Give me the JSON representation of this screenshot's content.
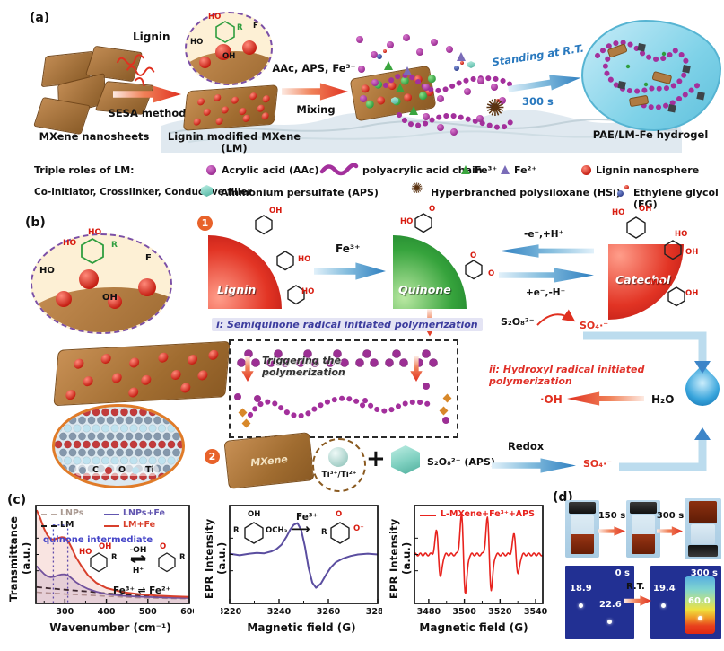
{
  "panel_a": {
    "label": "(a)",
    "mxene_caption": "MXene nanosheets",
    "lignin_label": "Lignin",
    "step1": "SESA method",
    "lm_caption": "Lignin modified MXene (LM)",
    "step2_top": "AAc, APS, Fe³⁺",
    "step2_bottom": "Mixing",
    "step3_top": "Standing at R.T.",
    "step3_bottom": "300 s",
    "hydrogel_caption": "PAE/LM-Fe hydrogel",
    "inset": {
      "ho": "HO",
      "ho_red": "HO",
      "r": "R",
      "f": "F",
      "oh": "OH"
    }
  },
  "legend": {
    "row1_title": "Triple roles of LM:",
    "row2_title": "Co-initiator, Crosslinker, Conductive filler",
    "items": [
      {
        "icon": "purple-circle",
        "label": "Acrylic acid (AAc)"
      },
      {
        "icon": "purple-chain",
        "label": "polyacrylic acid chain"
      },
      {
        "icon": "green-triangle",
        "label": "Fe³⁺"
      },
      {
        "icon": "violet-triangle",
        "label": "Fe²⁺"
      },
      {
        "icon": "red-circle",
        "label": "Lignin nanosphere"
      },
      {
        "icon": "teal-cube",
        "label": "Ammonium persulfate (APS)"
      },
      {
        "icon": "brown-burr",
        "label": "Hyperbranched polysiloxane (HSi)"
      },
      {
        "icon": "blue-red-dots",
        "label": "Ethylene glycol (EG)"
      }
    ]
  },
  "panel_b": {
    "label": "(b)",
    "marker1": "1",
    "marker2": "2",
    "lignin": "Lignin",
    "quinone": "Quinone",
    "catechol": "Catechol",
    "fe3": "Fe³⁺",
    "cycle_top": "-e⁻,+H⁺",
    "cycle_bottom": "+e⁻,-H⁺",
    "persulfate": "S₂O₈²⁻",
    "sulfate": "SO₄·⁻",
    "route_i": "i: Semiquinone radical initiated polymerization",
    "route_ii": "ii: Hydroxyl radical initiated polymerization",
    "triggering": "Triggering the polymerization",
    "oh_radical": "·OH",
    "water": "H₂O",
    "mxene": "MXene",
    "ti": "Ti³⁺/Ti²⁺",
    "plus": "+",
    "aps": "S₂O₈²⁻ (APS)",
    "redox": "Redox",
    "sulfate2": "SO₄·⁻",
    "atoms": [
      "C",
      "O",
      "Ti"
    ],
    "inset": {
      "ho": "HO",
      "ho_red1": "HO",
      "ho_red2": "HO",
      "r": "R",
      "f": "F",
      "oh": "OH"
    },
    "mol": {
      "oh": "OH",
      "ho": "HO",
      "r": "R",
      "o": "O"
    }
  },
  "panel_c": {
    "label": "(c)"
  },
  "panel_d": {
    "label": "(d)",
    "t150": "150 s",
    "t300": "300 s",
    "thermal_left_time": "0 s",
    "thermal_right_time": "300 s",
    "temp1": "18.9",
    "temp2": "22.6",
    "temp3": "19.4",
    "temp4": "60.0",
    "rt": "R.T."
  },
  "chart_data": [
    {
      "type": "line",
      "xlabel": "Wavenumber (cm⁻¹)",
      "ylabel": "Transmittance (a.u.)",
      "xlim": [
        230,
        600
      ],
      "ylim": [
        0,
        1.05
      ],
      "xticks": [
        300,
        400,
        500,
        600
      ],
      "xminor": [
        250,
        350,
        450,
        550
      ],
      "grid": false,
      "legend_position": "top-inside",
      "annotation": "quinone intermediate",
      "annotation_box": {
        "x1": 272,
        "x2": 307,
        "ytop": 0.84
      },
      "inset": {
        "top": "-OH",
        "eq": "⇌",
        "bottom": "H⁺",
        "fe": "Fe³⁺ ⇌ Fe²⁺",
        "mol_left": {
          "ho": "HO",
          "oh": "OH",
          "r": "R"
        },
        "mol_right": {
          "o": "O",
          "r": "R"
        }
      },
      "series": [
        {
          "name": "LNPs",
          "color": "#b8a79e",
          "style": "dashed",
          "width": 1.6,
          "x": [
            232,
            260,
            280,
            300,
            320,
            340,
            360,
            400,
            440,
            480,
            520,
            560,
            600
          ],
          "y": [
            0.12,
            0.112,
            0.107,
            0.1,
            0.096,
            0.092,
            0.088,
            0.078,
            0.069,
            0.062,
            0.057,
            0.053,
            0.05
          ]
        },
        {
          "name": "LM",
          "color": "#1a1a1a",
          "style": "dashed",
          "width": 1.8,
          "x": [
            232,
            260,
            280,
            300,
            320,
            340,
            360,
            400,
            440,
            480,
            520,
            560,
            600
          ],
          "y": [
            0.175,
            0.163,
            0.155,
            0.147,
            0.14,
            0.133,
            0.126,
            0.108,
            0.093,
            0.082,
            0.073,
            0.066,
            0.062
          ]
        },
        {
          "name": "LNPs+Fe",
          "color": "#6256b0",
          "width": 1.8,
          "fill": true,
          "x": [
            232,
            240,
            250,
            258,
            266,
            274,
            282,
            292,
            300,
            308,
            316,
            326,
            340,
            356,
            376,
            400,
            440,
            480,
            520,
            560,
            600
          ],
          "y": [
            0.4,
            0.36,
            0.315,
            0.29,
            0.28,
            0.285,
            0.3,
            0.31,
            0.312,
            0.3,
            0.27,
            0.23,
            0.19,
            0.155,
            0.125,
            0.1,
            0.082,
            0.072,
            0.066,
            0.061,
            0.058
          ]
        },
        {
          "name": "LM+Fe",
          "color": "#d8402c",
          "width": 2.0,
          "fill": true,
          "x": [
            232,
            240,
            250,
            258,
            266,
            274,
            282,
            292,
            300,
            308,
            316,
            326,
            340,
            356,
            376,
            400,
            440,
            480,
            520,
            560,
            600
          ],
          "y": [
            1.0,
            0.92,
            0.8,
            0.73,
            0.69,
            0.685,
            0.7,
            0.71,
            0.705,
            0.67,
            0.6,
            0.5,
            0.4,
            0.3,
            0.22,
            0.165,
            0.12,
            0.098,
            0.085,
            0.076,
            0.07
          ]
        }
      ]
    },
    {
      "type": "line",
      "xlabel": "Magnetic field (G)",
      "ylabel": "EPR Intensity (a.u.)",
      "xlim": [
        3220,
        3280
      ],
      "ylim": [
        -1.25,
        1.25
      ],
      "xticks": [
        3220,
        3240,
        3260,
        3280
      ],
      "xminor": [
        3230,
        3250,
        3270
      ],
      "grid": false,
      "inset": {
        "mol_left": {
          "oh": "OH",
          "och3": "OCH₃",
          "r": "R"
        },
        "arrow_label": "Fe³⁺",
        "arrow": "⟶",
        "mol_right": {
          "o": "O",
          "ominus": "O⁻",
          "r": "R"
        }
      },
      "series": [
        {
          "name": "semiquinone radical signal",
          "color": "#5b4ea0",
          "width": 2.0,
          "x": [
            3220,
            3224,
            3228,
            3231,
            3234,
            3237,
            3239,
            3241,
            3243,
            3244.5,
            3246,
            3247.5,
            3249,
            3250.5,
            3252,
            3253.5,
            3255,
            3257,
            3259,
            3261,
            3263,
            3266,
            3269,
            3272,
            3276,
            3280
          ],
          "y": [
            0.02,
            -0.02,
            0.02,
            0.04,
            0.03,
            0.08,
            0.14,
            0.25,
            0.45,
            0.63,
            0.76,
            0.8,
            0.62,
            0.2,
            -0.35,
            -0.72,
            -0.85,
            -0.74,
            -0.52,
            -0.33,
            -0.2,
            -0.1,
            -0.04,
            0.0,
            0.02,
            0.0
          ]
        }
      ]
    },
    {
      "type": "line",
      "xlabel": "Magnetic field (G)",
      "ylabel": "EPR Intensity (a.u.)",
      "xlim": [
        3472,
        3544
      ],
      "ylim": [
        -1.25,
        1.25
      ],
      "xticks": [
        3480,
        3500,
        3520,
        3540
      ],
      "xminor": [
        3490,
        3510,
        3530
      ],
      "grid": false,
      "legend": "L-MXene+Fe³⁺+APS",
      "series": [
        {
          "name": "L-MXene+Fe³⁺+APS",
          "color": "#e8231e",
          "width": 1.6,
          "peaks": {
            "centers": [
              3485.5,
              3499.5,
              3514,
              3529
            ],
            "amplitudes": [
              0.6,
              1.0,
              0.92,
              0.52
            ],
            "sigma": 1.1
          }
        }
      ]
    }
  ]
}
